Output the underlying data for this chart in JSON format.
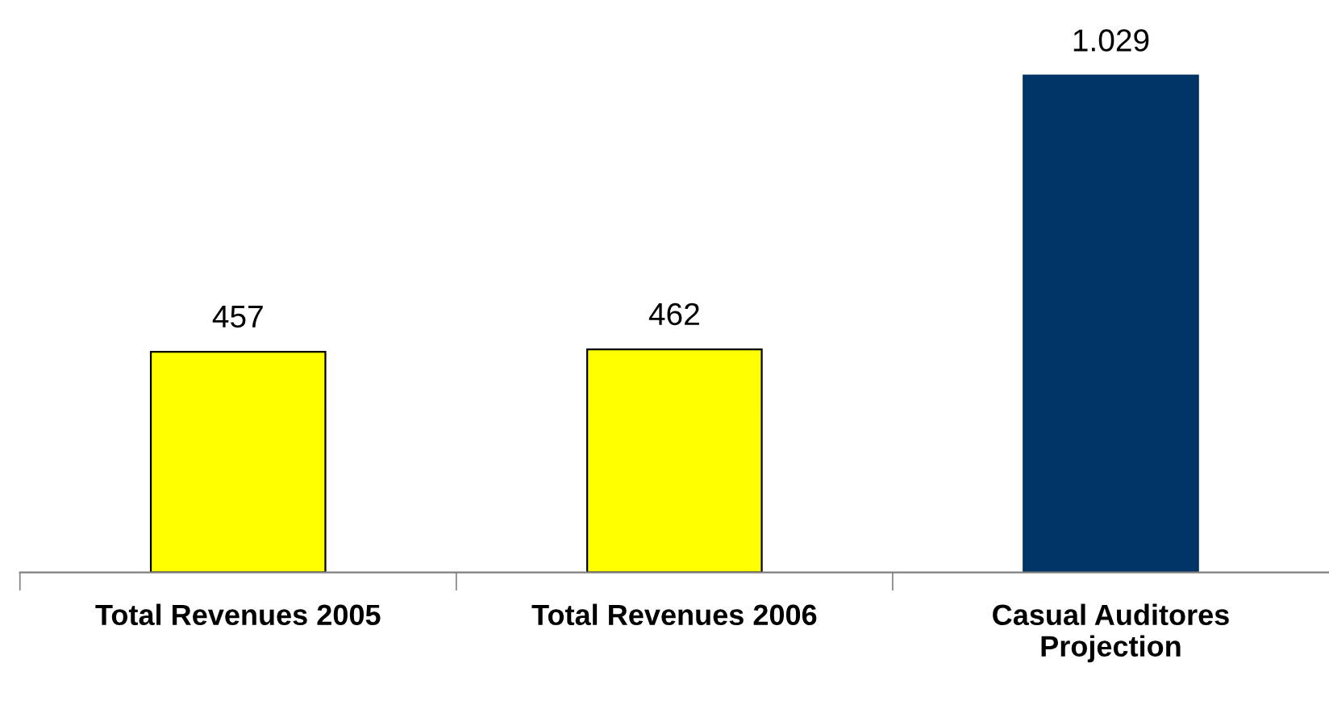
{
  "chart_data": {
    "type": "bar",
    "categories": [
      "Total Revenues 2005",
      "Total Revenues 2006",
      "Casual Auditores\nProjection"
    ],
    "values": [
      457,
      462,
      1029
    ],
    "colors": [
      "#ffff00",
      "#ffff00",
      "#003366"
    ],
    "value_labels": [
      "457",
      "462",
      "1.029"
    ],
    "tick_labels": "x",
    "grid": false,
    "legend": false
  }
}
